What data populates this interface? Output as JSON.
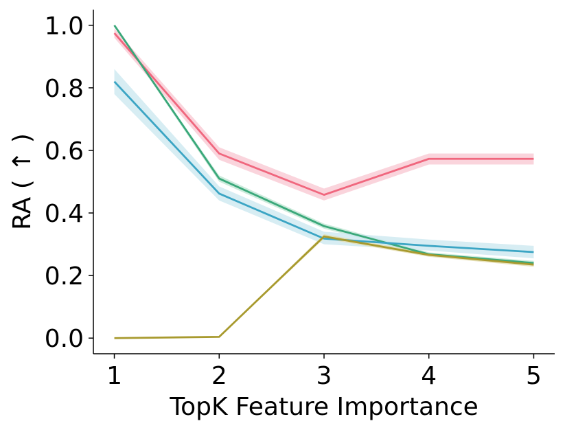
{
  "chart_data": {
    "type": "line",
    "xlabel": "TopK Feature Importance",
    "ylabel": "RA ( ↑ )",
    "x": [
      1,
      2,
      3,
      4,
      5
    ],
    "xticks": [
      "1",
      "2",
      "3",
      "4",
      "5"
    ],
    "yticks": [
      "0.0",
      "0.2",
      "0.4",
      "0.6",
      "0.8",
      "1.0"
    ],
    "xlim": [
      0.8,
      5.2
    ],
    "ylim": [
      -0.05,
      1.05
    ],
    "grid": false,
    "series": [
      {
        "color": "#f0677e",
        "band_color": "#f9c9d3",
        "values": [
          0.975,
          0.59,
          0.458,
          0.573,
          0.573
        ],
        "lower": [
          0.96,
          0.57,
          0.44,
          0.555,
          0.555
        ],
        "upper": [
          0.99,
          0.61,
          0.478,
          0.59,
          0.59
        ]
      },
      {
        "color": "#3aa87a",
        "band_color": "#bfe6d3",
        "values": [
          1.0,
          0.51,
          0.358,
          0.268,
          0.24
        ],
        "lower": [
          0.995,
          0.5,
          0.35,
          0.262,
          0.233
        ],
        "upper": [
          1.0,
          0.52,
          0.366,
          0.274,
          0.247
        ]
      },
      {
        "color": "#3ba5c4",
        "band_color": "#cde9f0",
        "values": [
          0.82,
          0.462,
          0.318,
          0.295,
          0.275
        ],
        "lower": [
          0.78,
          0.44,
          0.3,
          0.28,
          0.255
        ],
        "upper": [
          0.86,
          0.485,
          0.34,
          0.315,
          0.295
        ]
      },
      {
        "color": "#a89a2e",
        "band_color": "#e3dcae",
        "values": [
          0.0,
          0.004,
          0.325,
          0.266,
          0.235
        ],
        "lower": [
          0.0,
          0.002,
          0.318,
          0.26,
          0.228
        ],
        "upper": [
          0.0,
          0.006,
          0.332,
          0.272,
          0.242
        ]
      }
    ]
  }
}
